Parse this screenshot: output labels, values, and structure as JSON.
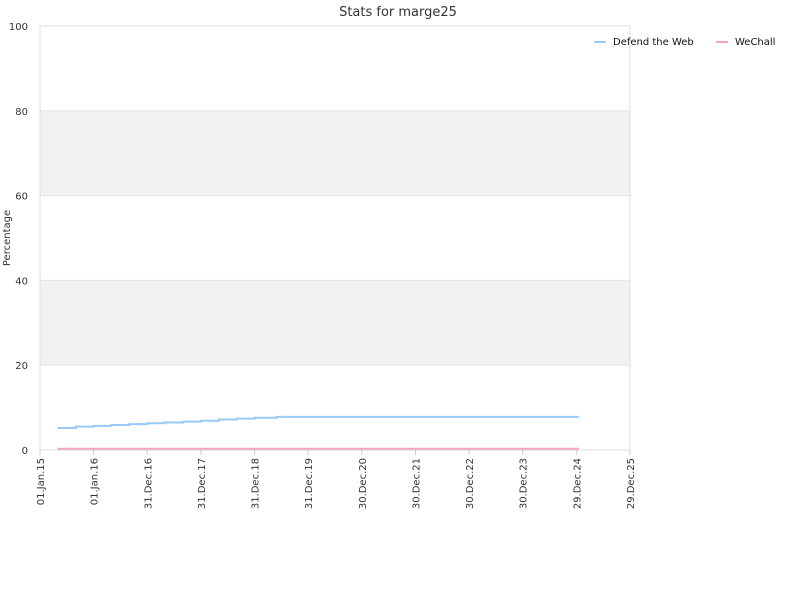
{
  "chart_data": {
    "type": "line",
    "title": "Stats for marge25",
    "xlabel": "",
    "ylabel": "Percentage",
    "ylim": [
      0,
      100
    ],
    "yticks": [
      0,
      20,
      40,
      60,
      80,
      100
    ],
    "xlim": [
      "2015-01-01",
      "2025-12-29"
    ],
    "xticks": [
      {
        "date": "2015-01-01",
        "label": "01.Jan.15"
      },
      {
        "date": "2016-01-01",
        "label": "01.Jan.16"
      },
      {
        "date": "2016-12-31",
        "label": "31.Dec.16"
      },
      {
        "date": "2017-12-31",
        "label": "31.Dec.17"
      },
      {
        "date": "2018-12-31",
        "label": "31.Dec.18"
      },
      {
        "date": "2019-12-31",
        "label": "31.Dec.19"
      },
      {
        "date": "2020-12-30",
        "label": "30.Dec.20"
      },
      {
        "date": "2021-12-30",
        "label": "30.Dec.21"
      },
      {
        "date": "2022-12-30",
        "label": "30.Dec.22"
      },
      {
        "date": "2023-12-30",
        "label": "30.Dec.23"
      },
      {
        "date": "2024-12-29",
        "label": "29.Dec.24"
      },
      {
        "date": "2025-12-29",
        "label": "29.Dec.25"
      }
    ],
    "grid": true,
    "legend_position": "top-right",
    "series": [
      {
        "name": "Defend the Web",
        "color": "#99c9f5",
        "step": true,
        "points": [
          {
            "x": "2015-05-01",
            "y": 5.2
          },
          {
            "x": "2015-09-01",
            "y": 5.5
          },
          {
            "x": "2016-01-01",
            "y": 5.7
          },
          {
            "x": "2016-05-01",
            "y": 5.9
          },
          {
            "x": "2016-09-01",
            "y": 6.1
          },
          {
            "x": "2017-01-01",
            "y": 6.3
          },
          {
            "x": "2017-05-01",
            "y": 6.5
          },
          {
            "x": "2017-09-01",
            "y": 6.7
          },
          {
            "x": "2018-01-01",
            "y": 6.9
          },
          {
            "x": "2018-05-01",
            "y": 7.2
          },
          {
            "x": "2018-09-01",
            "y": 7.4
          },
          {
            "x": "2019-01-01",
            "y": 7.6
          },
          {
            "x": "2019-06-01",
            "y": 7.8
          },
          {
            "x": "2025-01-15",
            "y": 7.8
          }
        ]
      },
      {
        "name": "WeChall",
        "color": "#f5a3c7",
        "step": false,
        "points": [
          {
            "x": "2015-05-01",
            "y": 0.3
          },
          {
            "x": "2025-01-15",
            "y": 0.3
          }
        ]
      }
    ],
    "band_color": "#f2f2f2",
    "grid_color": "#e6e6e6"
  }
}
